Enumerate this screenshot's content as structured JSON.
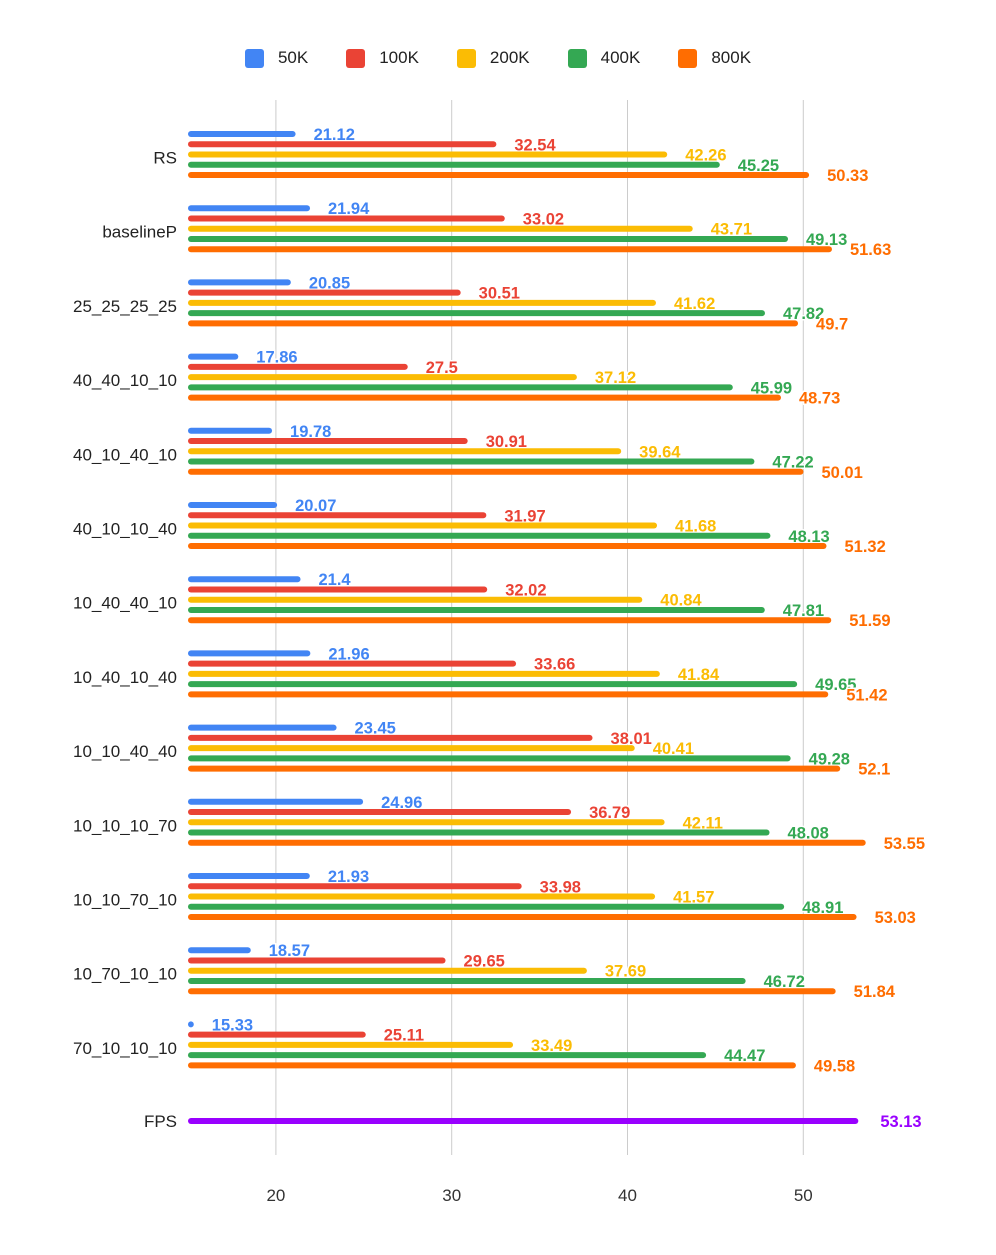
{
  "chart_data": {
    "type": "bar",
    "orientation": "horizontal",
    "title": "",
    "xlabel": "",
    "ylabel": "",
    "xlim": [
      15,
      54
    ],
    "xticks": [
      20,
      30,
      40,
      50
    ],
    "grid": true,
    "legend_position": "top-center",
    "categories": [
      "RS",
      "baselineP",
      "25_25_25_25",
      "40_40_10_10",
      "40_10_40_10",
      "40_10_10_40",
      "10_40_40_10",
      "10_40_10_40",
      "10_10_40_40",
      "10_10_10_70",
      "10_10_70_10",
      "10_70_10_10",
      "70_10_10_10"
    ],
    "series": [
      {
        "name": "50K",
        "color": "#4285F4",
        "values": [
          21.12,
          21.94,
          20.85,
          17.86,
          19.78,
          20.07,
          21.4,
          21.96,
          23.45,
          24.96,
          21.93,
          18.57,
          15.33
        ]
      },
      {
        "name": "100K",
        "color": "#EA4335",
        "values": [
          32.54,
          33.02,
          30.51,
          27.5,
          30.91,
          31.97,
          32.02,
          33.66,
          38.01,
          36.79,
          33.98,
          29.65,
          25.11
        ]
      },
      {
        "name": "200K",
        "color": "#FBBC04",
        "values": [
          42.26,
          43.71,
          41.62,
          37.12,
          39.64,
          41.68,
          40.84,
          41.84,
          40.41,
          42.11,
          41.57,
          37.69,
          33.49
        ]
      },
      {
        "name": "400K",
        "color": "#34A853",
        "values": [
          45.25,
          49.13,
          47.82,
          45.99,
          47.22,
          48.13,
          47.81,
          49.65,
          49.28,
          48.08,
          48.91,
          46.72,
          44.47
        ]
      },
      {
        "name": "800K",
        "color": "#FF6D01",
        "values": [
          50.33,
          51.63,
          49.7,
          48.73,
          50.01,
          51.32,
          51.59,
          51.42,
          52.1,
          53.55,
          53.03,
          51.84,
          49.58
        ]
      }
    ],
    "reference": {
      "category": "FPS",
      "value": 53.13,
      "color": "#9900FF"
    }
  }
}
